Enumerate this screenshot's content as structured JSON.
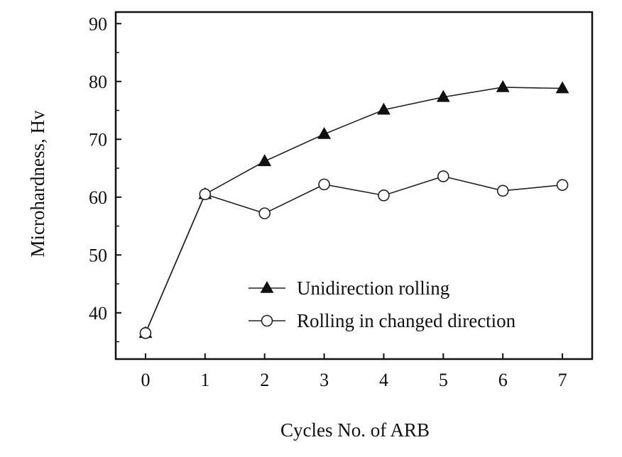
{
  "chart_data": {
    "type": "line",
    "title": "",
    "xlabel": "Cycles No. of ARB",
    "ylabel": "Microhardness, Hv",
    "x": [
      0,
      1,
      2,
      3,
      4,
      5,
      6,
      7
    ],
    "xlim": [
      -0.5,
      7.5
    ],
    "ylim": [
      32,
      92
    ],
    "xticks": [
      "0",
      "1",
      "2",
      "3",
      "4",
      "5",
      "6",
      "7"
    ],
    "yticks": [
      "40",
      "50",
      "60",
      "70",
      "80",
      "90"
    ],
    "grid": false,
    "legend_position": "lower-right",
    "series": [
      {
        "name": "Unidirection rolling",
        "marker": "filled-triangle",
        "values": [
          36.5,
          60.5,
          66.2,
          70.9,
          75.1,
          77.3,
          79.0,
          78.8
        ]
      },
      {
        "name": "Rolling in changed direction",
        "marker": "open-circle",
        "values": [
          36.5,
          60.5,
          57.2,
          62.2,
          60.3,
          63.6,
          61.1,
          62.1
        ]
      }
    ]
  }
}
